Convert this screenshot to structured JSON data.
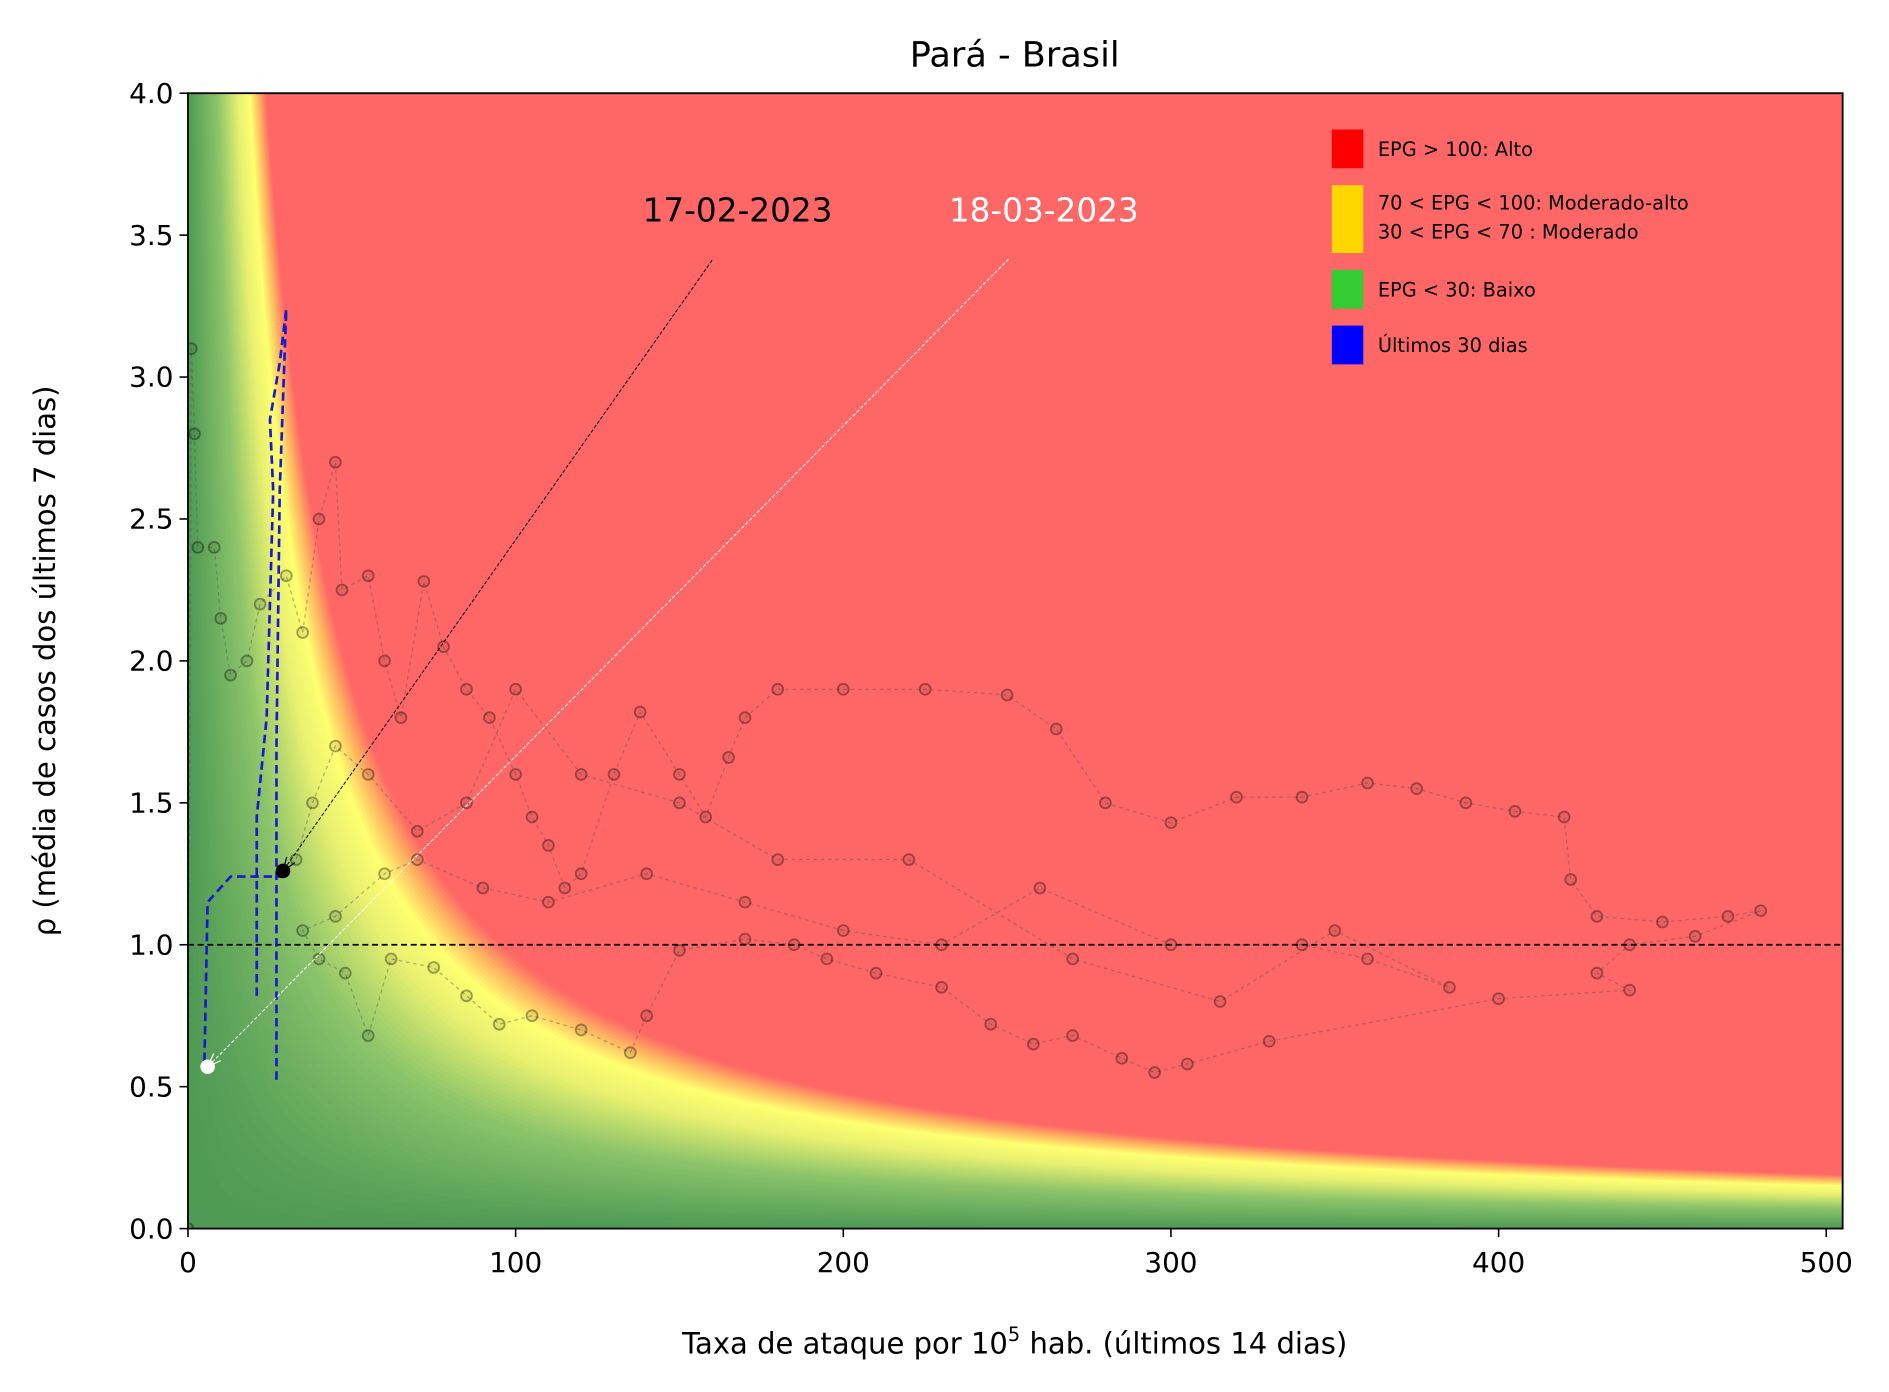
{
  "chart_data": {
    "type": "scatter",
    "title": "Pará - Brasil",
    "xlabel": {
      "before": "Taxa de ataque por 10",
      "sup": "5",
      "after": " hab. (últimos 14 dias)"
    },
    "ylabel": "ρ (média de casos dos últimos 7 dias)",
    "xlim": [
      0,
      505
    ],
    "ylim": [
      0,
      4
    ],
    "xticks": [
      0,
      100,
      200,
      300,
      400,
      500
    ],
    "yticks": [
      {
        "value": 0,
        "label": "0.0"
      },
      0.5,
      {
        "value": 1,
        "label": "1.0"
      },
      1.5,
      {
        "value": 2,
        "label": "2.0"
      },
      2.5,
      {
        "value": 3,
        "label": "3.0"
      },
      3.5,
      {
        "value": 4,
        "label": "4.0"
      }
    ],
    "reference_line": 1,
    "series": [
      {
        "color": "#000000",
        "x": [
          0,
          1,
          2,
          3,
          8,
          10,
          13,
          18,
          22,
          30,
          35,
          40,
          45,
          47,
          55,
          60,
          65,
          72,
          78,
          85,
          92,
          100,
          105,
          110,
          115,
          120,
          130,
          138,
          150,
          158,
          165,
          170,
          180,
          200,
          225,
          250,
          265,
          280,
          300,
          320,
          340,
          360,
          375,
          390,
          405,
          420,
          422,
          430,
          450,
          470,
          480,
          460,
          440,
          430,
          440,
          400,
          330,
          305,
          295,
          285,
          270,
          258,
          245,
          230,
          210,
          195,
          185,
          170,
          150,
          140,
          135,
          120,
          105,
          95,
          85,
          75,
          62,
          55,
          48,
          40,
          35,
          45,
          60,
          70,
          90,
          110,
          140,
          170,
          200,
          230,
          260,
          300,
          340,
          360,
          385,
          350,
          315,
          270,
          220,
          180,
          150,
          120,
          100,
          85,
          70,
          55,
          45,
          38,
          33,
          29
        ],
        "y": [
          0,
          3.1,
          2.8,
          2.4,
          2.4,
          2.15,
          1.95,
          2.0,
          2.2,
          2.3,
          2.1,
          2.5,
          2.7,
          2.25,
          2.3,
          2.0,
          1.8,
          2.28,
          2.05,
          1.9,
          1.8,
          1.6,
          1.45,
          1.35,
          1.2,
          1.25,
          1.6,
          1.82,
          1.6,
          1.45,
          1.66,
          1.8,
          1.9,
          1.9,
          1.9,
          1.88,
          1.76,
          1.5,
          1.43,
          1.52,
          1.52,
          1.57,
          1.55,
          1.5,
          1.47,
          1.45,
          1.23,
          1.1,
          1.08,
          1.1,
          1.12,
          1.03,
          1.0,
          0.9,
          0.84,
          0.81,
          0.66,
          0.58,
          0.55,
          0.6,
          0.68,
          0.65,
          0.72,
          0.85,
          0.9,
          0.95,
          1.0,
          1.02,
          0.98,
          0.75,
          0.62,
          0.7,
          0.75,
          0.72,
          0.82,
          0.92,
          0.95,
          0.68,
          0.9,
          0.95,
          1.05,
          1.1,
          1.25,
          1.3,
          1.2,
          1.15,
          1.25,
          1.15,
          1.05,
          1.0,
          1.2,
          1.0,
          1.0,
          0.95,
          0.85,
          1.05,
          0.8,
          0.95,
          1.3,
          1.3,
          1.5,
          1.6,
          1.9,
          1.5,
          1.4,
          1.6,
          1.7,
          1.5,
          1.3,
          1.26
        ]
      },
      {
        "name": "Últimos 30 dias",
        "color": "#1a1acc",
        "x": [
          21,
          21,
          24,
          26,
          25,
          28,
          30,
          28,
          27,
          27,
          null,
          28,
          28,
          13,
          6,
          5
        ],
        "y": [
          0.82,
          1.45,
          1.8,
          2.6,
          2.85,
          3.05,
          3.24,
          2.6,
          1.7,
          0.52,
          null,
          1.26,
          1.24,
          1.24,
          1.15,
          0.57
        ]
      }
    ],
    "annotations": [
      {
        "text": "17-02-2023",
        "x": 29,
        "y": 1.26,
        "color": "#000000"
      },
      {
        "text": "18-03-2023",
        "x": 6,
        "y": 0.57,
        "color": "#ffffff"
      }
    ],
    "legend": [
      {
        "color": "#ff0000",
        "labels": [
          "EPG > 100: Alto"
        ]
      },
      {
        "color": "#ffd700",
        "labels": [
          "70 < EPG < 100: Moderado-alto",
          "30 < EPG < 70 : Moderado"
        ]
      },
      {
        "color": "#33cc33",
        "labels": [
          "EPG < 30: Baixo"
        ]
      },
      {
        "color": "#0000ff",
        "labels": [
          "Últimos 30 dias"
        ]
      }
    ]
  }
}
